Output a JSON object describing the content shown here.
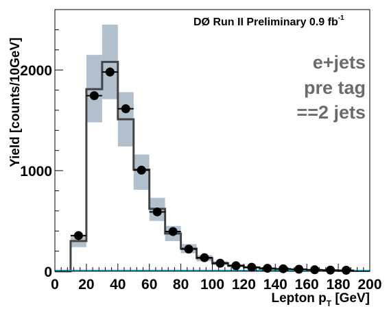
{
  "chart_data": {
    "type": "histogram",
    "header": "DØ Run II Preliminary 0.9 fb",
    "header_superscript": "-1",
    "xlabel_main": "Lepton p",
    "xlabel_sub": "T",
    "xlabel_unit": " [GeV]",
    "ylabel": "Yield [counts/10GeV]",
    "annotations": [
      "e+jets",
      "pre tag",
      "==2 jets"
    ],
    "xlim": [
      0,
      200
    ],
    "ylim": [
      0,
      2600
    ],
    "x_ticks": [
      0,
      20,
      40,
      60,
      80,
      100,
      120,
      140,
      160,
      180,
      200
    ],
    "y_ticks": [
      0,
      1000,
      2000
    ],
    "bin_edges": [
      0,
      10,
      20,
      30,
      40,
      50,
      60,
      70,
      80,
      90,
      100,
      110,
      120,
      130,
      140,
      150,
      160,
      170,
      180,
      190,
      200
    ],
    "series": [
      {
        "role": "model_histogram",
        "color": "#444444",
        "values": [
          0,
          300,
          1810,
          2080,
          1510,
          1010,
          620,
          375,
          225,
          130,
          80,
          55,
          38,
          26,
          18,
          13,
          9,
          6,
          4,
          3
        ]
      },
      {
        "role": "model_uncertainty_band",
        "color": "#b2bfcc",
        "low": [
          0,
          240,
          1480,
          1710,
          1240,
          810,
          500,
          300,
          180,
          100,
          60,
          40,
          28,
          19,
          13,
          9,
          6,
          4,
          3,
          2
        ],
        "high": [
          0,
          360,
          2150,
          2450,
          1780,
          1160,
          730,
          450,
          270,
          160,
          100,
          70,
          48,
          34,
          24,
          17,
          12,
          8,
          6,
          4
        ]
      },
      {
        "role": "data_points",
        "color": "#000000",
        "x": [
          15,
          25,
          35,
          45,
          55,
          65,
          75,
          85,
          95,
          105,
          115,
          125,
          135,
          145,
          155,
          165,
          175,
          185
        ],
        "values": [
          355,
          1745,
          1980,
          1615,
          1005,
          590,
          395,
          220,
          135,
          80,
          55,
          40,
          30,
          25,
          20,
          15,
          12,
          10
        ],
        "errors": [
          19,
          42,
          44,
          40,
          32,
          24,
          20,
          15,
          12,
          9,
          7,
          6,
          5,
          5,
          4,
          4,
          3,
          3
        ]
      },
      {
        "role": "baseline_line",
        "color": "#1aa8c0",
        "values": [
          8,
          8
        ]
      }
    ]
  }
}
